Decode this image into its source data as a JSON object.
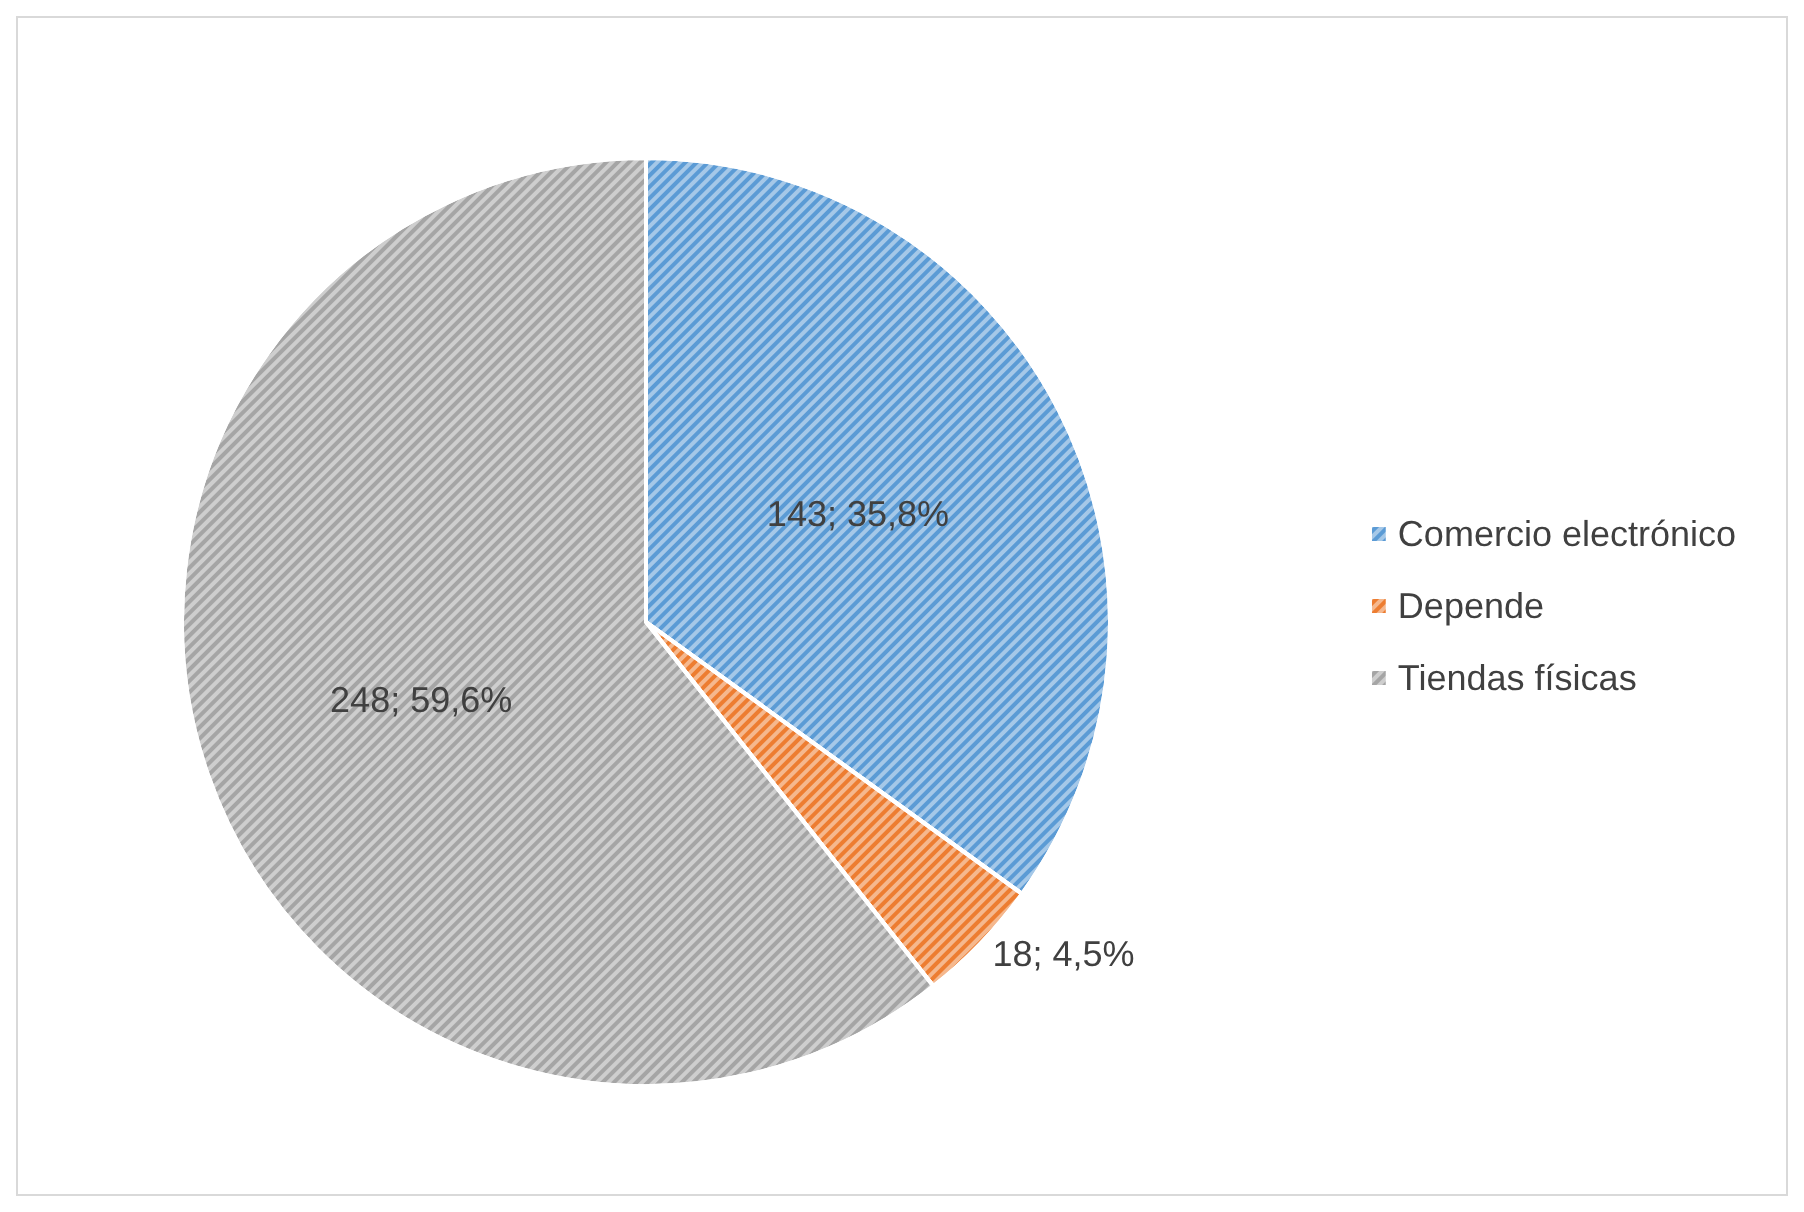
{
  "chart_data": {
    "type": "pie",
    "categories": [
      "Comercio electrónico",
      "Depende",
      "Tiendas físicas"
    ],
    "values": [
      143,
      18,
      248
    ],
    "value_labels": [
      "143; 35,8%",
      "18; 4,5%",
      "248; 59,6%"
    ],
    "colors": [
      "#5b9bd5",
      "#ed7d31",
      "#a5a5a5"
    ],
    "legend": "right"
  }
}
